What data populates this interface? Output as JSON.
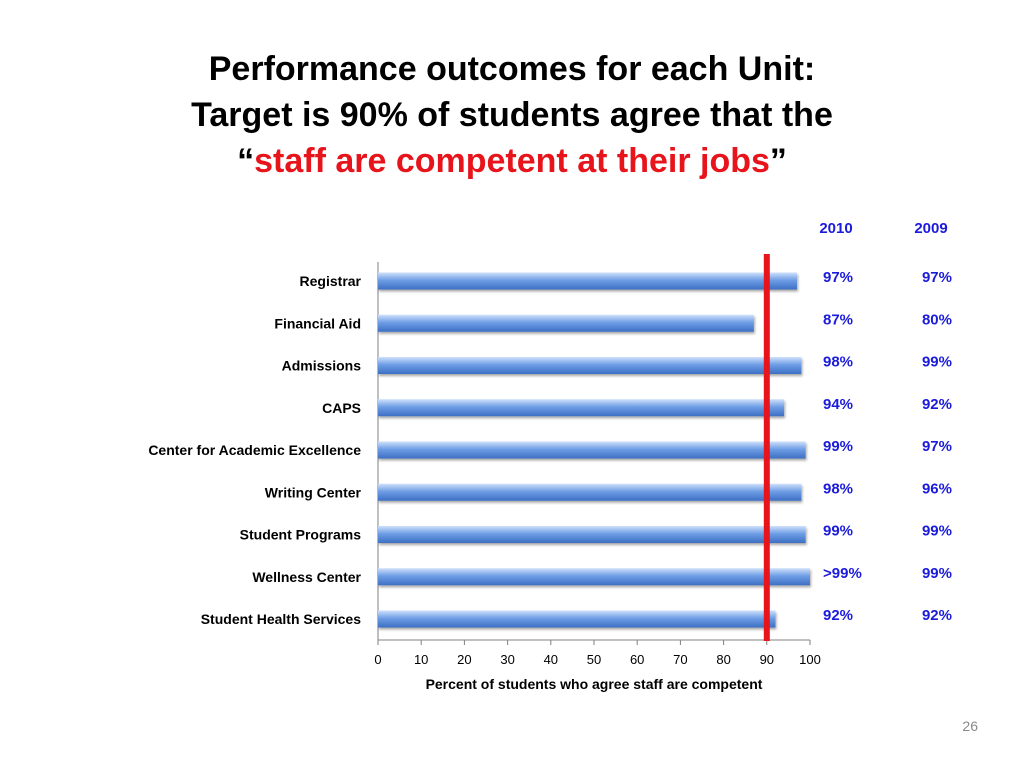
{
  "title": {
    "line1": "Performance outcomes for each Unit:",
    "line2": "Target is 90% of students agree that the",
    "line3_open_quote": "“",
    "line3_highlight": "staff are competent at their jobs",
    "line3_close_quote": "”"
  },
  "colors": {
    "highlight": "#e8141c",
    "bar_fill": "#6f9ee6",
    "bar_light": "#cfe0fb",
    "percent_labels": "#1b1bdc",
    "target_line": "#e8141c"
  },
  "chart_data": {
    "type": "bar",
    "orientation": "horizontal",
    "categories": [
      "Registrar",
      "Financial Aid",
      "Admissions",
      "CAPS",
      "Center for Academic Excellence",
      "Writing Center",
      "Student Programs",
      "Wellness Center",
      "Student Health Services"
    ],
    "values": [
      97,
      87,
      98,
      94,
      99,
      98,
      99,
      100,
      92
    ],
    "xlabel": "Percent of students who agree staff are competent",
    "xlim": [
      0,
      100
    ],
    "xticks": [
      0,
      10,
      20,
      30,
      40,
      50,
      60,
      70,
      80,
      90,
      100
    ],
    "target": 90,
    "columns": [
      "2010",
      "2009"
    ],
    "labels_2010": [
      "97%",
      "87%",
      "98%",
      "94%",
      "99%",
      "98%",
      "99%",
      ">99%",
      "92%"
    ],
    "labels_2009": [
      "97%",
      "80%",
      "99%",
      "92%",
      "97%",
      "96%",
      "99%",
      "99%",
      "92%"
    ]
  },
  "slide_number": "26"
}
